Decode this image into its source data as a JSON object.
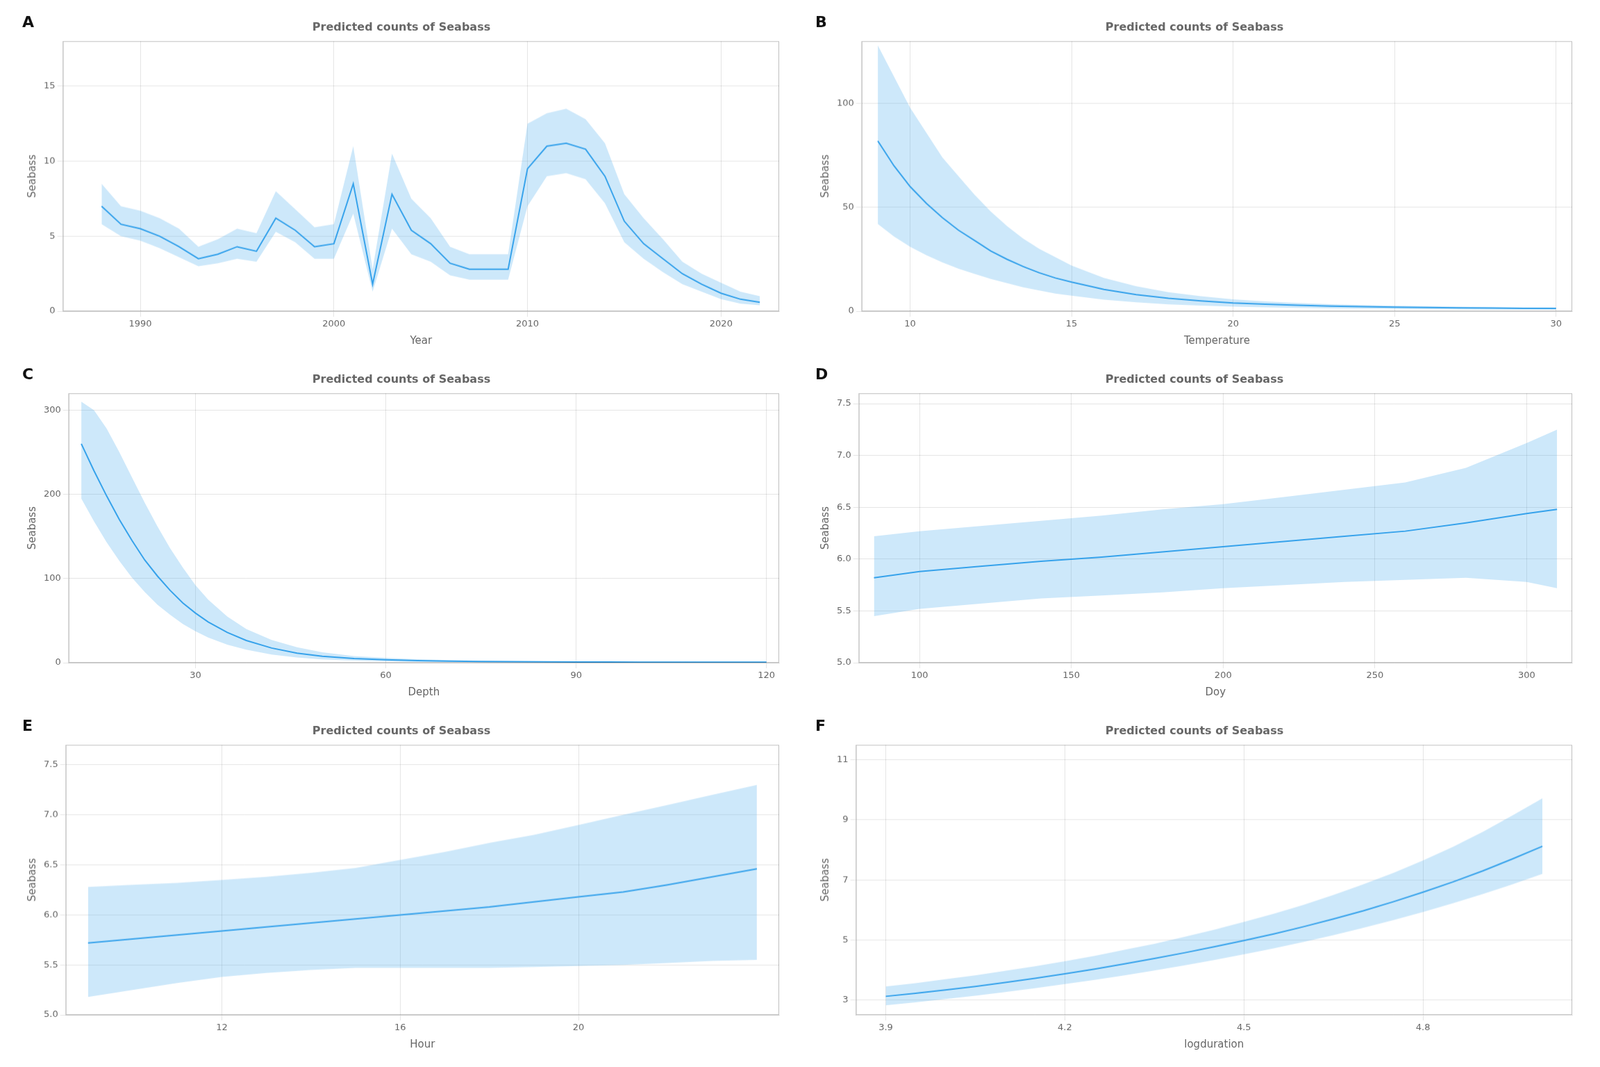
{
  "chart_data": [
    {
      "type": "line",
      "title": "Predicted counts of Seabass",
      "xlabel": "Year",
      "ylabel": "Seabass",
      "annotations": [
        {
          "text": "A"
        }
      ],
      "grid": true,
      "xlim": [
        1986,
        2023
      ],
      "ylim": [
        0,
        18
      ],
      "xticks": [
        1990,
        2000,
        2010,
        2020
      ],
      "yticks": [
        0,
        5,
        10,
        15
      ],
      "x": [
        1988,
        1989,
        1990,
        1991,
        1992,
        1993,
        1994,
        1995,
        1996,
        1997,
        1998,
        1999,
        2000,
        2001,
        2002,
        2003,
        2004,
        2005,
        2006,
        2007,
        2008,
        2009,
        2010,
        2011,
        2012,
        2013,
        2014,
        2015,
        2016,
        2017,
        2018,
        2019,
        2020,
        2021,
        2022
      ],
      "series": [
        {
          "type": "band",
          "lower": [
            5.8,
            5.0,
            4.7,
            4.2,
            3.6,
            3.0,
            3.2,
            3.5,
            3.3,
            5.3,
            4.6,
            3.5,
            3.5,
            6.5,
            1.3,
            5.5,
            3.8,
            3.3,
            2.4,
            2.1,
            2.1,
            2.1,
            7.0,
            9.0,
            9.2,
            8.8,
            7.2,
            4.6,
            3.5,
            2.6,
            1.8,
            1.3,
            0.8,
            0.5,
            0.4
          ],
          "upper": [
            8.5,
            7.0,
            6.7,
            6.2,
            5.5,
            4.3,
            4.8,
            5.5,
            5.2,
            8.0,
            6.8,
            5.6,
            5.8,
            11.0,
            2.8,
            10.5,
            7.5,
            6.2,
            4.3,
            3.8,
            3.8,
            3.8,
            12.5,
            13.2,
            13.5,
            12.8,
            11.2,
            7.8,
            6.2,
            4.8,
            3.3,
            2.5,
            1.9,
            1.3,
            1.0
          ]
        },
        {
          "type": "line",
          "values": [
            7.0,
            5.8,
            5.5,
            5.0,
            4.3,
            3.5,
            3.8,
            4.3,
            4.0,
            6.2,
            5.4,
            4.3,
            4.5,
            8.5,
            1.8,
            7.8,
            5.4,
            4.5,
            3.2,
            2.8,
            2.8,
            2.8,
            9.5,
            11.0,
            11.2,
            10.8,
            9.0,
            6.0,
            4.5,
            3.5,
            2.5,
            1.8,
            1.2,
            0.8,
            0.6
          ]
        }
      ]
    },
    {
      "type": "line",
      "title": "Predicted counts of Seabass",
      "xlabel": "Temperature",
      "ylabel": "Seabass",
      "annotations": [
        {
          "text": "B"
        }
      ],
      "grid": true,
      "xlim": [
        8.5,
        30.5
      ],
      "ylim": [
        0,
        130
      ],
      "xticks": [
        10,
        15,
        20,
        25,
        30
      ],
      "yticks": [
        0,
        50,
        100
      ],
      "x": [
        9.0,
        9.5,
        10.0,
        10.5,
        11.0,
        11.5,
        12.0,
        12.5,
        13.0,
        13.5,
        14.0,
        14.5,
        15.0,
        16.0,
        17.0,
        18.0,
        19.0,
        20.0,
        21.0,
        22.0,
        23.0,
        24.0,
        25.0,
        26.0,
        27.0,
        28.0,
        29.0,
        30.0
      ],
      "series": [
        {
          "type": "band",
          "lower": [
            42.0,
            36.0,
            31.0,
            27.0,
            23.5,
            20.5,
            18.0,
            15.5,
            13.5,
            11.5,
            10.0,
            8.5,
            7.5,
            5.6,
            4.3,
            3.3,
            2.7,
            2.2,
            1.9,
            1.6,
            1.4,
            1.2,
            1.1,
            1.0,
            0.9,
            0.8,
            0.8,
            0.7
          ],
          "upper": [
            128.0,
            113.0,
            98.0,
            86.0,
            74.0,
            65.0,
            56.0,
            48.0,
            41.0,
            35.0,
            30.0,
            26.0,
            22.0,
            16.0,
            12.0,
            9.2,
            7.2,
            5.7,
            4.7,
            4.0,
            3.4,
            3.0,
            2.6,
            2.4,
            2.1,
            1.9,
            1.8,
            1.7
          ]
        },
        {
          "type": "line",
          "values": [
            82.0,
            70.0,
            60.0,
            52.0,
            45.0,
            39.0,
            34.0,
            29.0,
            25.0,
            21.5,
            18.5,
            16.0,
            14.0,
            10.5,
            8.0,
            6.2,
            5.0,
            4.0,
            3.4,
            2.9,
            2.5,
            2.2,
            2.0,
            1.8,
            1.6,
            1.5,
            1.4,
            1.4
          ]
        }
      ]
    },
    {
      "type": "line",
      "title": "Predicted counts of Seabass",
      "xlabel": "Depth",
      "ylabel": "Seabass",
      "annotations": [
        {
          "text": "C"
        }
      ],
      "grid": true,
      "xlim": [
        10,
        122
      ],
      "ylim": [
        0,
        320
      ],
      "xticks": [
        30,
        60,
        90,
        120
      ],
      "yticks": [
        0,
        100,
        200,
        300
      ],
      "x": [
        12,
        14,
        16,
        18,
        20,
        22,
        24,
        26,
        28,
        30,
        32,
        35,
        38,
        42,
        46,
        50,
        55,
        60,
        65,
        70,
        75,
        80,
        85,
        90,
        95,
        100,
        105,
        110,
        115,
        120
      ],
      "series": [
        {
          "type": "band",
          "lower": [
            195.0,
            168.0,
            143.0,
            121.0,
            101.0,
            84.0,
            69.0,
            57.0,
            46.0,
            37.5,
            30.0,
            21.5,
            15.5,
            9.8,
            6.2,
            4.0,
            2.5,
            1.7,
            1.2,
            0.9,
            0.7,
            0.55,
            0.46,
            0.4,
            0.35,
            0.3,
            0.28,
            0.26,
            0.24,
            0.22
          ],
          "upper": [
            310.0,
            300.0,
            278.0,
            250.0,
            220.0,
            190.0,
            162.0,
            136.0,
            113.0,
            92.0,
            75.0,
            55.0,
            40.0,
            27.0,
            18.5,
            12.5,
            8.0,
            5.8,
            4.2,
            3.2,
            2.4,
            1.9,
            1.65,
            1.45,
            1.3,
            1.15,
            1.05,
            0.95,
            0.88,
            0.82
          ]
        },
        {
          "type": "line",
          "values": [
            260.0,
            228.0,
            198.0,
            170.0,
            145.0,
            122.0,
            103.0,
            86.0,
            71.0,
            59.0,
            48.5,
            36.0,
            26.5,
            17.5,
            11.5,
            7.8,
            5.0,
            3.5,
            2.6,
            2.0,
            1.6,
            1.3,
            1.1,
            1.0,
            0.9,
            0.8,
            0.75,
            0.7,
            0.65,
            0.6
          ]
        }
      ]
    },
    {
      "type": "line",
      "title": "Predicted counts of Seabass",
      "xlabel": "Doy",
      "ylabel": "Seabass",
      "annotations": [
        {
          "text": "D"
        }
      ],
      "grid": true,
      "xlim": [
        80,
        315
      ],
      "ylim": [
        5.0,
        7.6
      ],
      "xticks": [
        100,
        150,
        200,
        250,
        300
      ],
      "yticks": [
        {
          "value": 5.0,
          "label": "5.0"
        },
        5.5,
        {
          "value": 6.0,
          "label": "6.0"
        },
        6.5,
        {
          "value": 7.0,
          "label": "7.0"
        },
        7.5
      ],
      "x": [
        85,
        100,
        120,
        140,
        160,
        180,
        200,
        220,
        240,
        260,
        280,
        300,
        310
      ],
      "series": [
        {
          "type": "band",
          "lower": [
            5.45,
            5.52,
            5.57,
            5.62,
            5.65,
            5.68,
            5.72,
            5.75,
            5.78,
            5.8,
            5.82,
            5.78,
            5.72
          ],
          "upper": [
            6.22,
            6.27,
            6.32,
            6.37,
            6.42,
            6.48,
            6.53,
            6.6,
            6.67,
            6.74,
            6.88,
            7.12,
            7.25
          ]
        },
        {
          "type": "line",
          "values": [
            5.82,
            5.88,
            5.93,
            5.98,
            6.02,
            6.07,
            6.12,
            6.17,
            6.22,
            6.27,
            6.35,
            6.44,
            6.48
          ]
        }
      ]
    },
    {
      "type": "line",
      "title": "Predicted counts of Seabass",
      "xlabel": "Hour",
      "ylabel": "Seabass",
      "annotations": [
        {
          "text": "E"
        }
      ],
      "grid": true,
      "xlim": [
        8.5,
        24.5
      ],
      "ylim": [
        5.0,
        7.7
      ],
      "xticks": [
        12,
        16,
        20
      ],
      "yticks": [
        {
          "value": 5.0,
          "label": "5.0"
        },
        5.5,
        {
          "value": 6.0,
          "label": "6.0"
        },
        6.5,
        {
          "value": 7.0,
          "label": "7.0"
        },
        7.5
      ],
      "x": [
        9,
        10,
        11,
        12,
        13,
        14,
        15,
        16,
        17,
        18,
        19,
        20,
        21,
        22,
        23,
        24
      ],
      "series": [
        {
          "type": "band",
          "lower": [
            5.18,
            5.25,
            5.32,
            5.38,
            5.42,
            5.45,
            5.47,
            5.47,
            5.47,
            5.47,
            5.48,
            5.49,
            5.5,
            5.52,
            5.54,
            5.55
          ],
          "upper": [
            6.28,
            6.3,
            6.32,
            6.35,
            6.38,
            6.42,
            6.47,
            6.55,
            6.63,
            6.72,
            6.8,
            6.9,
            7.0,
            7.1,
            7.2,
            7.3
          ]
        },
        {
          "type": "line",
          "values": [
            5.72,
            5.76,
            5.8,
            5.84,
            5.88,
            5.92,
            5.96,
            6.0,
            6.04,
            6.08,
            6.13,
            6.18,
            6.23,
            6.3,
            6.38,
            6.46
          ]
        }
      ]
    },
    {
      "type": "line",
      "title": "Predicted counts of Seabass",
      "xlabel": "logduration",
      "ylabel": "Seabass",
      "annotations": [
        {
          "text": "F"
        }
      ],
      "grid": true,
      "xlim": [
        3.85,
        5.05
      ],
      "ylim": [
        2.5,
        11.5
      ],
      "xticks": [
        3.9,
        4.2,
        4.5,
        4.8
      ],
      "yticks": [
        3,
        5,
        7,
        9,
        11
      ],
      "x": [
        3.9,
        3.95,
        4.0,
        4.05,
        4.1,
        4.15,
        4.2,
        4.25,
        4.3,
        4.35,
        4.4,
        4.45,
        4.5,
        4.55,
        4.6,
        4.65,
        4.7,
        4.75,
        4.8,
        4.85,
        4.9,
        4.95,
        5.0
      ],
      "series": [
        {
          "type": "band",
          "lower": [
            2.82,
            2.92,
            3.03,
            3.14,
            3.26,
            3.39,
            3.53,
            3.67,
            3.82,
            3.98,
            4.15,
            4.33,
            4.52,
            4.72,
            4.93,
            5.16,
            5.4,
            5.66,
            5.93,
            6.22,
            6.53,
            6.85,
            7.2
          ],
          "upper": [
            3.45,
            3.56,
            3.69,
            3.82,
            3.97,
            4.12,
            4.29,
            4.47,
            4.67,
            4.87,
            5.1,
            5.34,
            5.6,
            5.87,
            6.17,
            6.5,
            6.85,
            7.23,
            7.65,
            8.1,
            8.6,
            9.15,
            9.72
          ]
        },
        {
          "type": "line",
          "values": [
            3.12,
            3.22,
            3.33,
            3.45,
            3.58,
            3.72,
            3.87,
            4.03,
            4.2,
            4.38,
            4.57,
            4.77,
            4.98,
            5.2,
            5.44,
            5.7,
            5.97,
            6.27,
            6.59,
            6.93,
            7.3,
            7.7,
            8.12
          ]
        }
      ]
    }
  ]
}
